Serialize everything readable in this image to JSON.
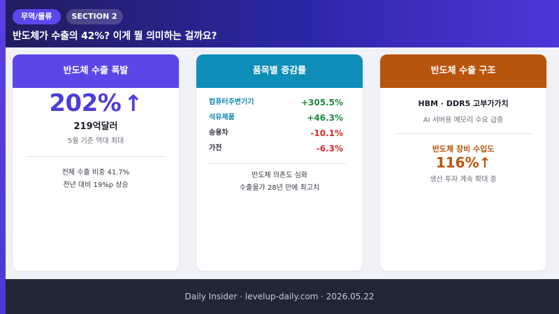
{
  "header": {
    "badges": [
      "무역/물류",
      "SECTION 2"
    ],
    "headline": "반도체가 수출의 42%? 이게 뭘 의미하는 걸까요?"
  },
  "cards": [
    {
      "title": "반도체 수출 폭발",
      "big_stat": "202%",
      "big_stat_arrow": "↑",
      "amount": "219억달러",
      "sub": "5월 기준 역대 최대",
      "notes": [
        "전체 수출 비중 41.7%",
        "전년 대비 19%p 상승"
      ]
    },
    {
      "title": "품목별 증감률",
      "items": [
        {
          "name": "컴퓨터주변기기",
          "value": "+305.5%",
          "trend": "positive"
        },
        {
          "name": "석유제품",
          "value": "+46.3%",
          "trend": "positive"
        },
        {
          "name": "승용차",
          "value": "-10.1%",
          "trend": "negative"
        },
        {
          "name": "가전",
          "value": "-6.3%",
          "trend": "negative"
        }
      ],
      "notes": [
        "반도체 의존도 심화",
        "수출물가 28년 만에 최고치"
      ]
    },
    {
      "title": "반도체 수출 구조",
      "headline": "HBM · DDR5 고부가가치",
      "sub": "AI 서버용 메모리 수요 급증",
      "import_label": "반도체 장비 수입도",
      "import_value": "116%↑",
      "import_sub": "생산 투자 계속 확대 중"
    }
  ],
  "footer": {
    "text": "Daily Insider · levelup-daily.com · 2026.05.22"
  },
  "colors": {
    "card1_accent": "#5b47e8",
    "card2_accent": "#0e8db8",
    "card3_accent": "#b9540d",
    "positive": "#1d8a3f",
    "negative": "#d42b2b"
  }
}
